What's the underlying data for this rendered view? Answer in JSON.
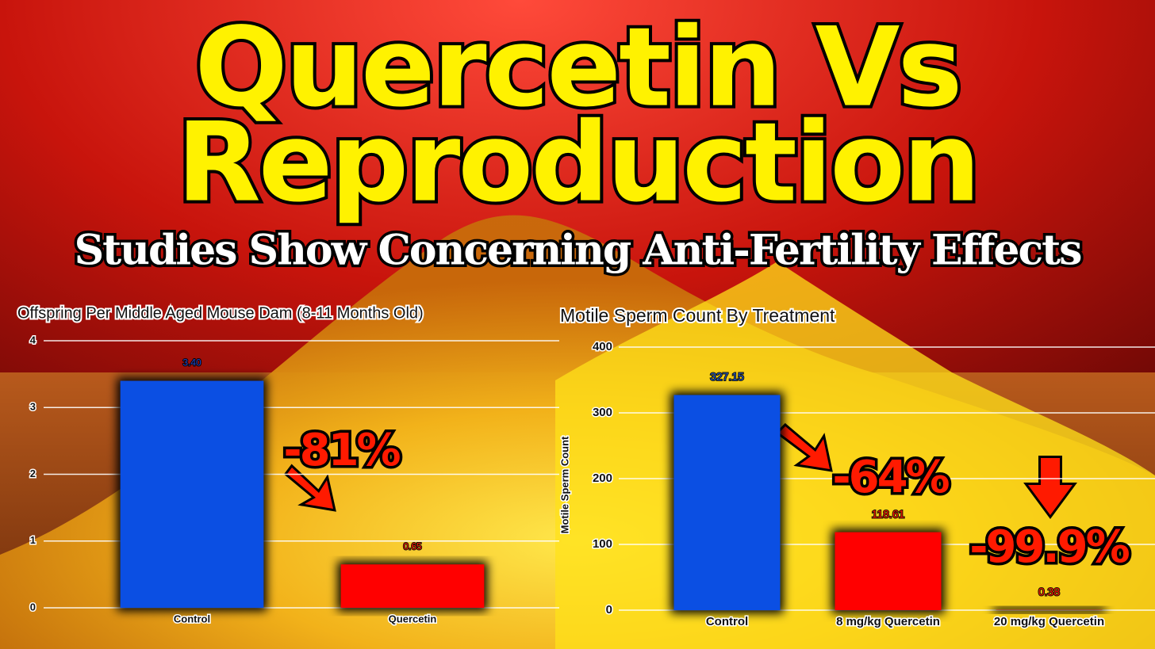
{
  "header": {
    "title_lines": [
      "Quercetin Vs",
      "Reproduction"
    ],
    "subtitle": "Studies Show Concerning Anti-Fertility Effects"
  },
  "chart_data": [
    {
      "type": "bar",
      "title": "Offspring Per Middle Aged Mouse Dam (8-11 Months Old)",
      "categories": [
        "Control",
        "Quercetin"
      ],
      "values": [
        3.4,
        0.65
      ],
      "value_labels": [
        "3.40",
        "0.65"
      ],
      "colors": [
        "#0b4fe3",
        "#ff0000"
      ],
      "ylim": [
        0,
        4
      ],
      "yticks": [
        0,
        1,
        2,
        3,
        4
      ],
      "grid": true,
      "annotations": [
        "-81%"
      ]
    },
    {
      "type": "bar",
      "title": "Motile Sperm Count By Treatment",
      "y_label": "Motile Sperm Count",
      "categories": [
        "Control",
        "8 mg/kg Quercetin",
        "20 mg/kg Quercetin"
      ],
      "values": [
        327.15,
        118.61,
        0.38
      ],
      "colors": [
        "#0b4fe3",
        "#ff0000",
        "#ff0000"
      ],
      "ylim": [
        0,
        400
      ],
      "yticks": [
        0,
        100,
        200,
        300,
        400
      ],
      "grid": true,
      "annotations": [
        "-64%",
        "-99.9%"
      ]
    }
  ]
}
